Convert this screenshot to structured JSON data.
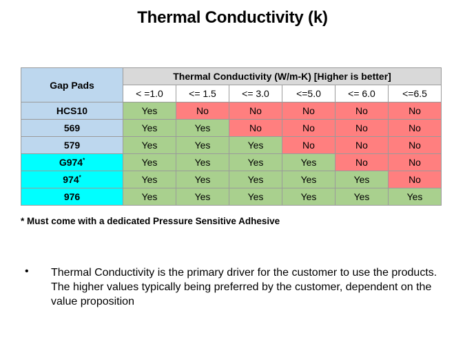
{
  "title": "Thermal Conductivity (k)",
  "table": {
    "corner_label": "Gap Pads",
    "group_header": "Thermal Conductivity (W/m-K) [Higher is better]",
    "columns": [
      "< =1.0",
      "<= 1.5",
      "<= 3.0",
      "<=5.0",
      "<= 6.0",
      "<=6.5"
    ],
    "rows": [
      {
        "pad": "HCS10",
        "mark": "",
        "highlight": "blue",
        "cells": [
          "Yes",
          "No",
          "No",
          "No",
          "No",
          "No"
        ]
      },
      {
        "pad": "569",
        "mark": "",
        "highlight": "blue",
        "cells": [
          "Yes",
          "Yes",
          "No",
          "No",
          "No",
          "No"
        ]
      },
      {
        "pad": "579",
        "mark": "",
        "highlight": "blue",
        "cells": [
          "Yes",
          "Yes",
          "Yes",
          "No",
          "No",
          "No"
        ]
      },
      {
        "pad": "G974",
        "mark": "*",
        "highlight": "cyan",
        "cells": [
          "Yes",
          "Yes",
          "Yes",
          "Yes",
          "No",
          "No"
        ]
      },
      {
        "pad": "974",
        "mark": "*",
        "highlight": "cyan",
        "cells": [
          "Yes",
          "Yes",
          "Yes",
          "Yes",
          "Yes",
          "No"
        ]
      },
      {
        "pad": "976",
        "mark": "",
        "highlight": "cyan",
        "cells": [
          "Yes",
          "Yes",
          "Yes",
          "Yes",
          "Yes",
          "Yes"
        ]
      }
    ]
  },
  "footnote": "* Must come with a dedicated Pressure Sensitive Adhesive",
  "bullet": {
    "symbol": "•",
    "text": "Thermal Conductivity is the primary driver for the customer to use the products. The higher values typically being preferred by the customer, dependent on the value proposition"
  },
  "colors": {
    "yes": "#a9d08e",
    "no": "#ff7f7f",
    "pad_blue": "#bdd7ee",
    "pad_cyan": "#00ffff",
    "header_gray": "#d9d9d9"
  }
}
